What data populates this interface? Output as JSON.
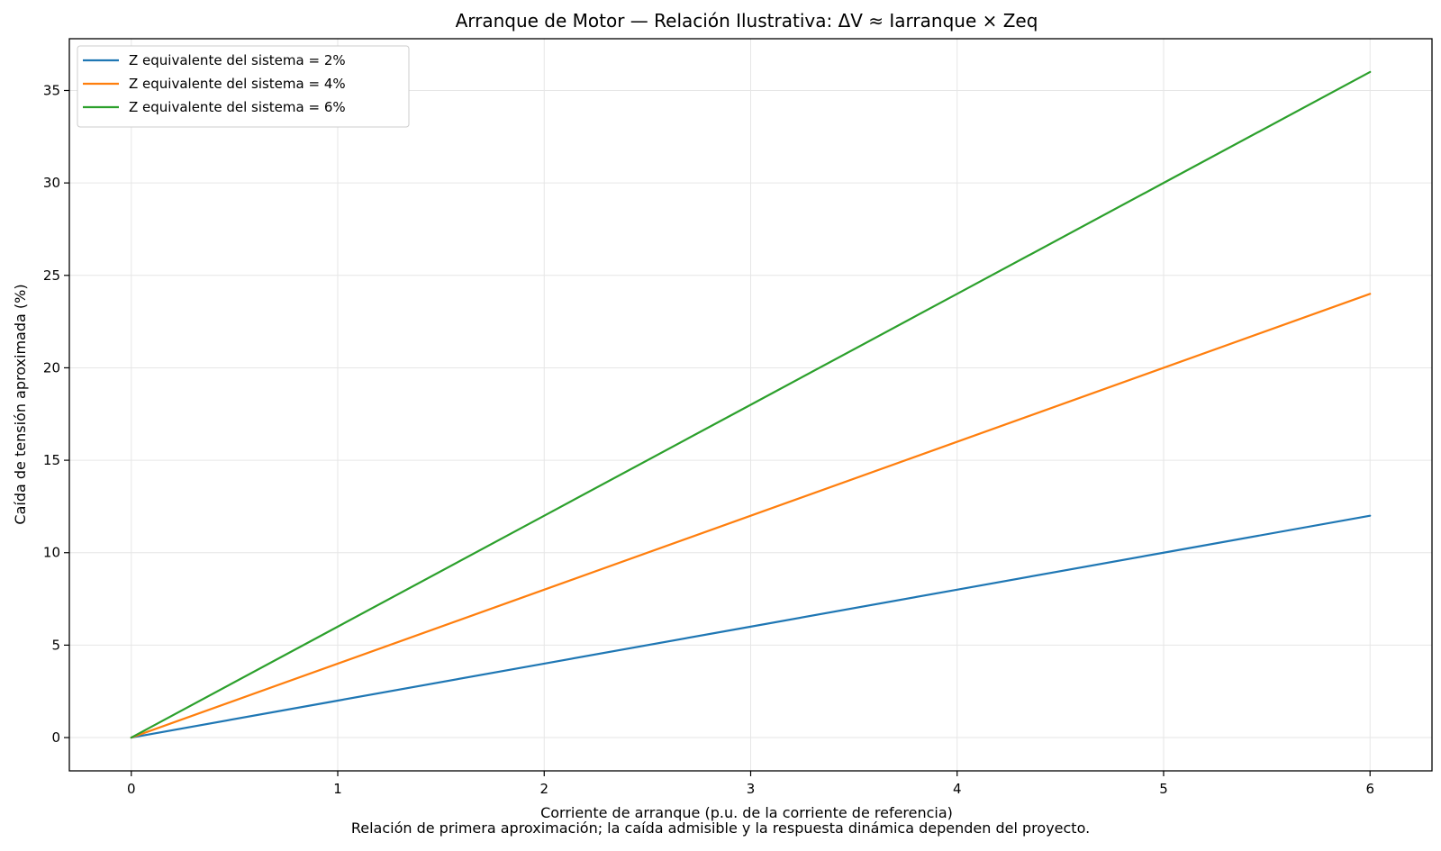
{
  "chart_data": {
    "type": "line",
    "title": "Arranque de Motor — Relación Ilustrativa: ΔV ≈ Iarranque × Zeq",
    "xlabel": "Corriente de arranque (p.u. de la corriente de referencia)",
    "ylabel": "Caída de tensión aproximada (%)",
    "caption": "Relación de primera aproximación; la caída admisible y la respuesta dinámica dependen del proyecto.",
    "xlim": [
      -0.3,
      6.3
    ],
    "ylim": [
      -1.8,
      37.8
    ],
    "xticks": [
      0,
      1,
      2,
      3,
      4,
      5,
      6
    ],
    "yticks": [
      0,
      5,
      10,
      15,
      20,
      25,
      30,
      35
    ],
    "grid": true,
    "legend_position": "top-left",
    "x": [
      0,
      1,
      2,
      3,
      4,
      5,
      6
    ],
    "series": [
      {
        "name": "Z equivalente del sistema = 2%",
        "color": "#1f77b4",
        "values": [
          0,
          2,
          4,
          6,
          8,
          10,
          12
        ]
      },
      {
        "name": "Z equivalente del sistema = 4%",
        "color": "#ff7f0e",
        "values": [
          0,
          4,
          8,
          12,
          16,
          20,
          24
        ]
      },
      {
        "name": "Z equivalente del sistema = 6%",
        "color": "#2ca02c",
        "values": [
          0,
          6,
          12,
          18,
          24,
          30,
          36
        ]
      }
    ]
  }
}
